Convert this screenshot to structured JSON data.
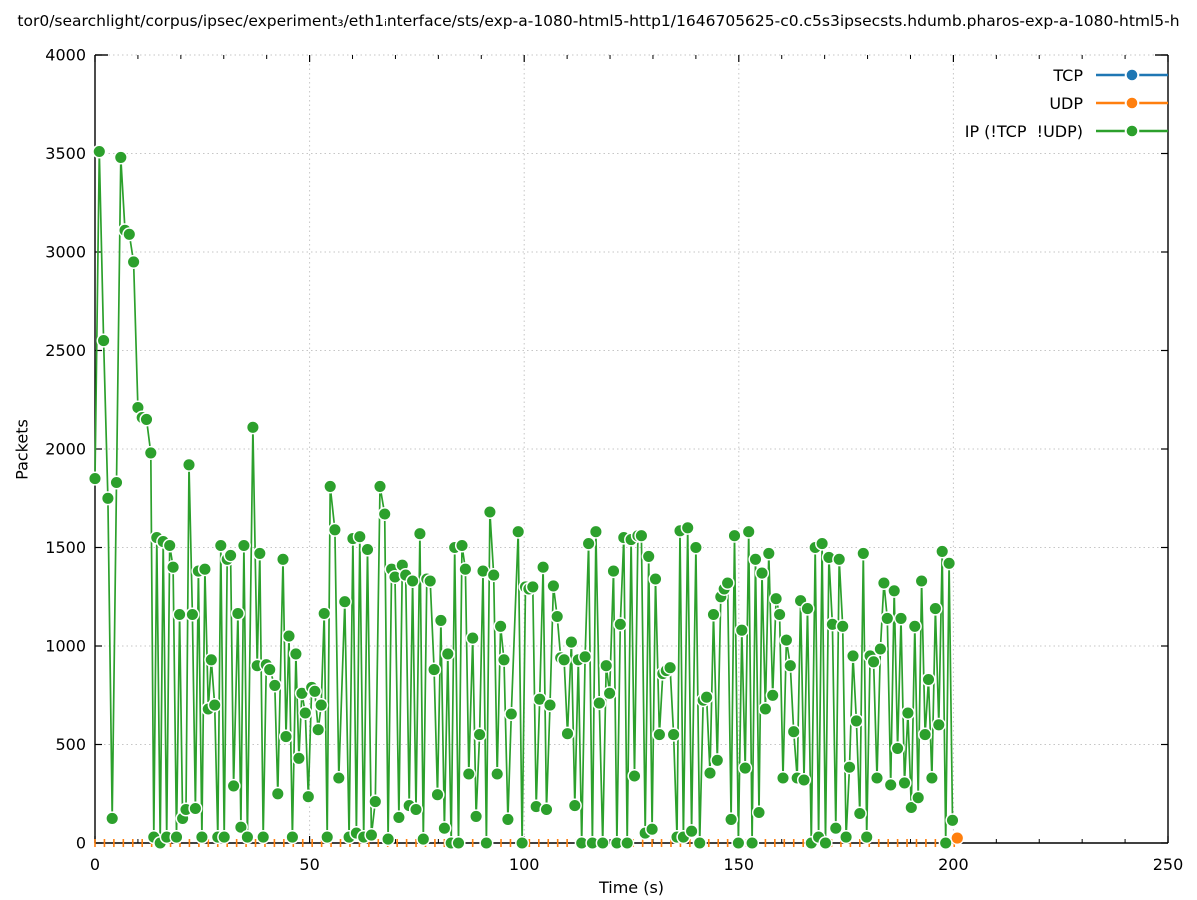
{
  "figure": {
    "title": "tor0/searchlight/corpus/ipsec/experiment₃/eth1ᵢnterface/sts/exp-a-1080-html5-http1/1646705625-c0.c5s3ipsecsts.hdumb.pharos-exp-a-1080-html5-h",
    "background": "#ffffff"
  },
  "axes": {
    "x": {
      "label": "Time (s)",
      "min": 0,
      "max": 250,
      "major_ticks": [
        0,
        50,
        100,
        150,
        200,
        250
      ],
      "minor_step": 10
    },
    "y": {
      "label": "Packets",
      "min": 0,
      "max": 4000,
      "major_ticks": [
        0,
        500,
        1000,
        1500,
        2000,
        2500,
        3000,
        3500,
        4000
      ]
    }
  },
  "legend": {
    "position": "top-right",
    "entries": [
      {
        "id": "tcp",
        "label": "TCP",
        "color": "#1f77b4"
      },
      {
        "id": "udp",
        "label": "UDP",
        "color": "#ff7f0e"
      },
      {
        "id": "ip",
        "label": "IP (!TCP  !UDP)",
        "color": "#2ca02c"
      }
    ]
  },
  "styles": {
    "grid_color": "#c6c6c6",
    "border_color": "#000000",
    "text_color": "#000000",
    "halo_color": "#ffffff",
    "point_radius": 6.3
  },
  "chart_data": {
    "type": "line",
    "title": "tor0/searchlight/corpus/ipsec/experiment₃/eth1ᵢnterface/sts/exp-a-1080-html5-http1/1646705625-c0.c5s3ipsecsts.hdumb.pharos-exp-a-1080-html5-h",
    "xlabel": "Time (s)",
    "ylabel": "Packets",
    "xlim": [
      0,
      250
    ],
    "ylim": [
      0,
      4000
    ],
    "grid": true,
    "legend_position": "top-right",
    "series": [
      {
        "name": "TCP",
        "color": "#1f77b4",
        "marker": "circle",
        "visible_points": [],
        "comment": "listed in legend; no points visible on plot"
      },
      {
        "name": "UDP",
        "color": "#ff7f0e",
        "marker": "vertical-dash",
        "baseline": {
          "t_start": 0,
          "t_end": 200.2,
          "step": 2.2,
          "value": 0
        },
        "final_point": [
          200.9,
          25
        ]
      },
      {
        "name": "IP (!TCP  !UDP)",
        "color": "#2ca02c",
        "marker": "circle",
        "points": [
          [
            0,
            1850
          ],
          [
            1,
            3510
          ],
          [
            2,
            2550
          ],
          [
            3,
            1750
          ],
          [
            4,
            125
          ],
          [
            5,
            1830
          ],
          [
            6,
            3480
          ],
          [
            7,
            3110
          ],
          [
            8,
            3090
          ],
          [
            9,
            2950
          ],
          [
            10,
            2210
          ],
          [
            11,
            2160
          ],
          [
            12,
            2150
          ],
          [
            13,
            1980
          ],
          [
            13.7,
            30
          ],
          [
            14.4,
            1550
          ],
          [
            15.2,
            0
          ],
          [
            15.9,
            1530
          ],
          [
            16.7,
            30
          ],
          [
            17.4,
            1510
          ],
          [
            18.2,
            1400
          ],
          [
            19,
            30
          ],
          [
            19.7,
            1160
          ],
          [
            20.4,
            125
          ],
          [
            21.2,
            170
          ],
          [
            21.9,
            1920
          ],
          [
            22.7,
            1160
          ],
          [
            23.4,
            175
          ],
          [
            24.1,
            1380
          ],
          [
            24.9,
            30
          ],
          [
            25.6,
            1390
          ],
          [
            26.4,
            680
          ],
          [
            27.1,
            930
          ],
          [
            27.9,
            700
          ],
          [
            28.6,
            30
          ],
          [
            29.3,
            1510
          ],
          [
            30.1,
            30
          ],
          [
            30.8,
            1440
          ],
          [
            31.6,
            1460
          ],
          [
            32.3,
            290
          ],
          [
            33.3,
            1165
          ],
          [
            34,
            80
          ],
          [
            34.7,
            1510
          ],
          [
            35.5,
            30
          ],
          [
            36.8,
            2110
          ],
          [
            37.8,
            900
          ],
          [
            38.4,
            1470
          ],
          [
            39.2,
            30
          ],
          [
            39.9,
            905
          ],
          [
            40.7,
            880
          ],
          [
            41.9,
            800
          ],
          [
            42.6,
            250
          ],
          [
            43.8,
            1440
          ],
          [
            44.5,
            540
          ],
          [
            45.2,
            1050
          ],
          [
            46,
            30
          ],
          [
            46.8,
            960
          ],
          [
            47.5,
            430
          ],
          [
            48.2,
            760
          ],
          [
            49,
            660
          ],
          [
            49.7,
            235
          ],
          [
            50.5,
            790
          ],
          [
            51.2,
            770
          ],
          [
            52,
            575
          ],
          [
            52.7,
            700
          ],
          [
            53.4,
            1165
          ],
          [
            54.1,
            30
          ],
          [
            54.8,
            1810
          ],
          [
            55.9,
            1590
          ],
          [
            56.8,
            330
          ],
          [
            58.2,
            1225
          ],
          [
            59.2,
            30
          ],
          [
            60.1,
            1545
          ],
          [
            60.9,
            50
          ],
          [
            61.7,
            1555
          ],
          [
            62.6,
            30
          ],
          [
            63.5,
            1490
          ],
          [
            64.4,
            40
          ],
          [
            65.3,
            210
          ],
          [
            66.4,
            1810
          ],
          [
            67.5,
            1670
          ],
          [
            68.3,
            20
          ],
          [
            69.1,
            1390
          ],
          [
            69.9,
            1350
          ],
          [
            70.8,
            130
          ],
          [
            71.6,
            1410
          ],
          [
            72.4,
            1360
          ],
          [
            73.2,
            190
          ],
          [
            74,
            1330
          ],
          [
            74.8,
            170
          ],
          [
            75.7,
            1570
          ],
          [
            76.5,
            20
          ],
          [
            77.3,
            1340
          ],
          [
            78.1,
            1330
          ],
          [
            79,
            880
          ],
          [
            79.8,
            245
          ],
          [
            80.6,
            1130
          ],
          [
            81.4,
            75
          ],
          [
            82.2,
            960
          ],
          [
            83,
            0
          ],
          [
            83.8,
            1500
          ],
          [
            84.7,
            0
          ],
          [
            85.5,
            1510
          ],
          [
            86.3,
            1390
          ],
          [
            87.1,
            350
          ],
          [
            88,
            1040
          ],
          [
            88.8,
            135
          ],
          [
            89.6,
            550
          ],
          [
            90.4,
            1380
          ],
          [
            91.2,
            0
          ],
          [
            92,
            1680
          ],
          [
            92.9,
            1360
          ],
          [
            93.7,
            350
          ],
          [
            94.5,
            1100
          ],
          [
            95.3,
            930
          ],
          [
            96.2,
            120
          ],
          [
            97,
            655
          ],
          [
            98.6,
            1580
          ],
          [
            99.5,
            0
          ],
          [
            100.3,
            1300
          ],
          [
            101.1,
            1290
          ],
          [
            102,
            1300
          ],
          [
            102.8,
            185
          ],
          [
            103.6,
            730
          ],
          [
            104.4,
            1400
          ],
          [
            105.2,
            170
          ],
          [
            106,
            700
          ],
          [
            106.8,
            1305
          ],
          [
            107.7,
            1150
          ],
          [
            108.5,
            940
          ],
          [
            109.3,
            930
          ],
          [
            110.1,
            555
          ],
          [
            111,
            1020
          ],
          [
            111.8,
            190
          ],
          [
            112.6,
            930
          ],
          [
            113.4,
            0
          ],
          [
            114.2,
            945
          ],
          [
            115,
            1520
          ],
          [
            115.9,
            0
          ],
          [
            116.7,
            1580
          ],
          [
            117.5,
            710
          ],
          [
            118.3,
            0
          ],
          [
            119.1,
            900
          ],
          [
            119.9,
            760
          ],
          [
            120.8,
            1380
          ],
          [
            121.6,
            0
          ],
          [
            122.4,
            1110
          ],
          [
            123.2,
            1550
          ],
          [
            124,
            0
          ],
          [
            124.9,
            1540
          ],
          [
            125.7,
            340
          ],
          [
            126.5,
            1560
          ],
          [
            127.3,
            1560
          ],
          [
            128.2,
            50
          ],
          [
            129,
            1455
          ],
          [
            129.8,
            70
          ],
          [
            130.6,
            1340
          ],
          [
            131.5,
            550
          ],
          [
            132.3,
            860
          ],
          [
            133.1,
            875
          ],
          [
            134,
            890
          ],
          [
            134.8,
            550
          ],
          [
            135.6,
            30
          ],
          [
            136.3,
            1585
          ],
          [
            137.1,
            30
          ],
          [
            138.1,
            1600
          ],
          [
            139,
            60
          ],
          [
            140,
            1500
          ],
          [
            140.9,
            0
          ],
          [
            141.7,
            725
          ],
          [
            142.5,
            740
          ],
          [
            143.3,
            355
          ],
          [
            144.1,
            1160
          ],
          [
            145,
            420
          ],
          [
            145.8,
            1250
          ],
          [
            146.6,
            1290
          ],
          [
            147.4,
            1320
          ],
          [
            148.2,
            120
          ],
          [
            149,
            1560
          ],
          [
            149.9,
            0
          ],
          [
            150.7,
            1080
          ],
          [
            151.5,
            380
          ],
          [
            152.3,
            1580
          ],
          [
            153.1,
            0
          ],
          [
            153.9,
            1440
          ],
          [
            154.7,
            155
          ],
          [
            155.4,
            1370
          ],
          [
            156.2,
            680
          ],
          [
            157,
            1470
          ],
          [
            157.9,
            750
          ],
          [
            158.7,
            1240
          ],
          [
            159.5,
            1160
          ],
          [
            160.3,
            330
          ],
          [
            161.1,
            1030
          ],
          [
            162,
            900
          ],
          [
            162.8,
            565
          ],
          [
            163.6,
            330
          ],
          [
            164.4,
            1230
          ],
          [
            165.2,
            320
          ],
          [
            166,
            1190
          ],
          [
            166.9,
            0
          ],
          [
            167.8,
            1500
          ],
          [
            168.6,
            30
          ],
          [
            169.4,
            1520
          ],
          [
            170.2,
            0
          ],
          [
            171,
            1450
          ],
          [
            171.8,
            1110
          ],
          [
            172.6,
            75
          ],
          [
            173.4,
            1440
          ],
          [
            174.2,
            1100
          ],
          [
            175,
            30
          ],
          [
            175.8,
            385
          ],
          [
            176.6,
            950
          ],
          [
            177.4,
            620
          ],
          [
            178.2,
            150
          ],
          [
            179,
            1470
          ],
          [
            179.8,
            30
          ],
          [
            180.6,
            950
          ],
          [
            181.4,
            920
          ],
          [
            182.2,
            330
          ],
          [
            183,
            985
          ],
          [
            183.8,
            1320
          ],
          [
            184.6,
            1140
          ],
          [
            185.4,
            295
          ],
          [
            186.2,
            1280
          ],
          [
            187,
            480
          ],
          [
            187.8,
            1140
          ],
          [
            188.6,
            305
          ],
          [
            189.4,
            660
          ],
          [
            190.2,
            180
          ],
          [
            191,
            1100
          ],
          [
            191.8,
            230
          ],
          [
            192.6,
            1330
          ],
          [
            193.4,
            550
          ],
          [
            194.2,
            830
          ],
          [
            195,
            330
          ],
          [
            195.8,
            1190
          ],
          [
            196.6,
            600
          ],
          [
            197.4,
            1480
          ],
          [
            198.2,
            0
          ],
          [
            199,
            1420
          ],
          [
            199.8,
            115
          ]
        ]
      }
    ]
  }
}
